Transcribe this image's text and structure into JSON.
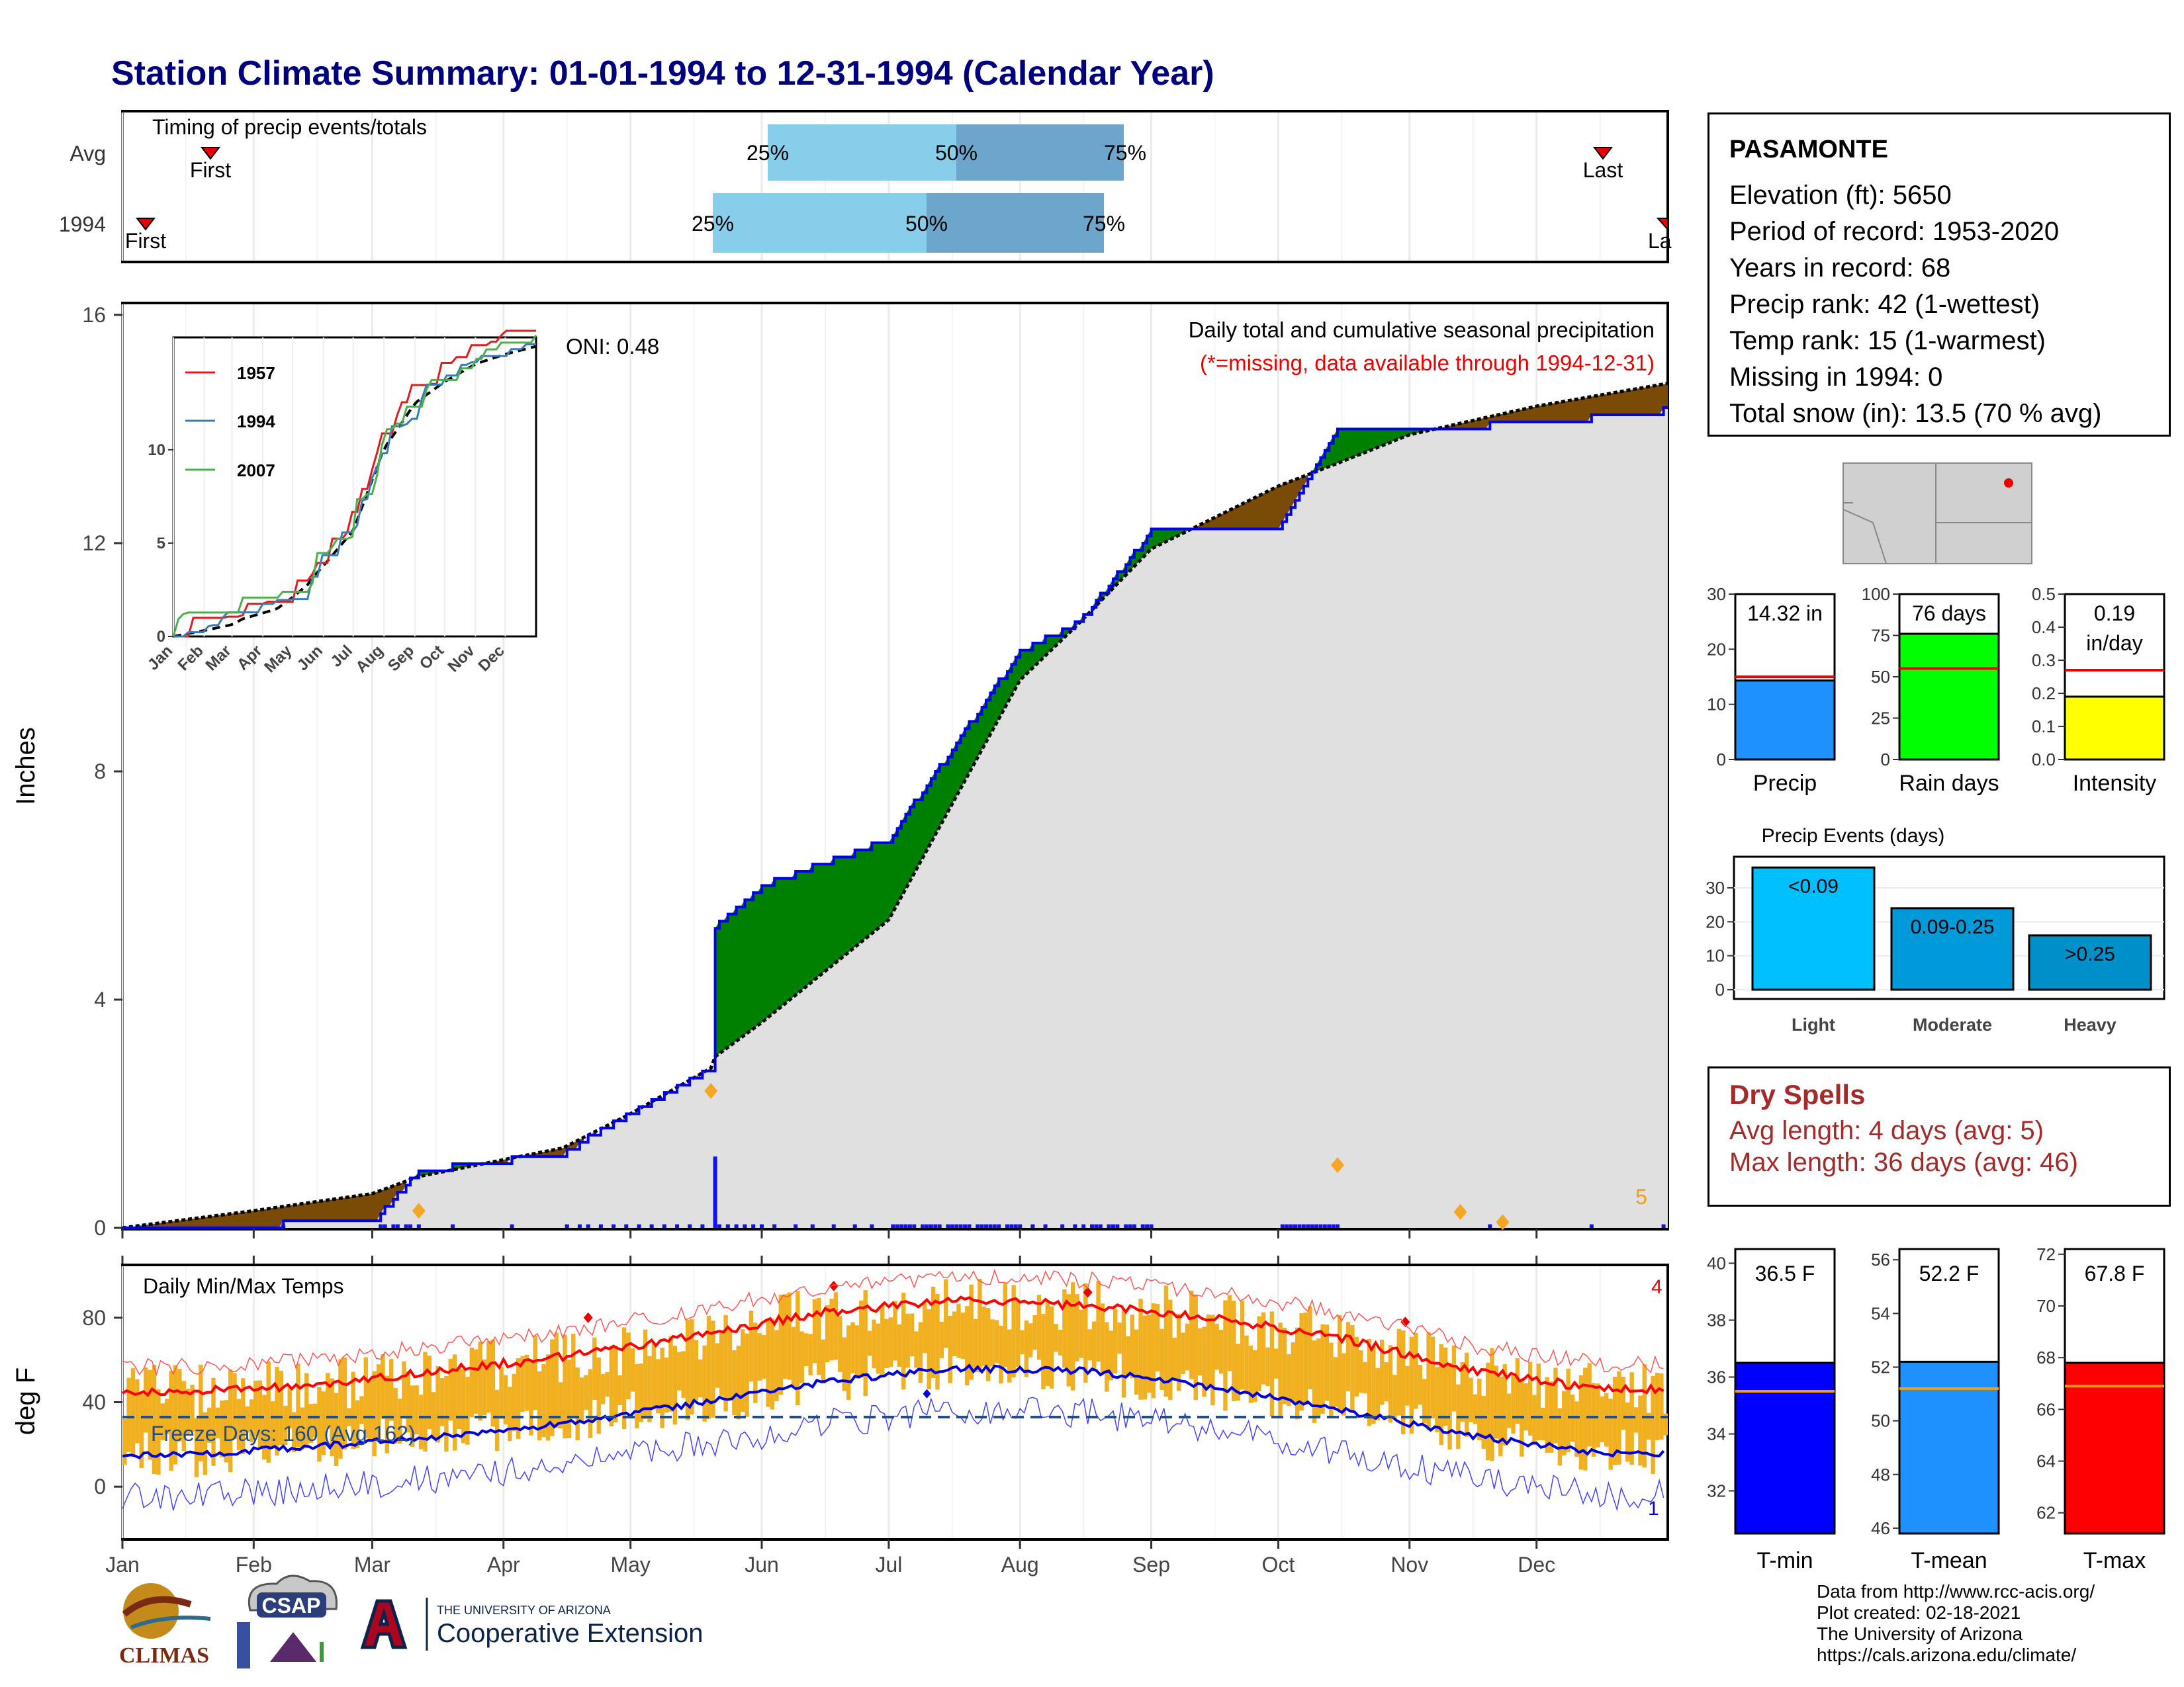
{
  "title": "Station Climate Summary: 01-01-1994 to 12-31-1994 (Calendar Year)",
  "colors": {
    "title": "#00007f",
    "cum_1994": "#0000ee",
    "cum_avg": "#000000",
    "above_fill": "#008000",
    "below_fill": "#7a4b07",
    "area_fill": "#e0e0e0",
    "tmax": "#ff0000",
    "tmin": "#0000dd",
    "temp_bar": "#f0b020",
    "precip_bar": "#1e90ff",
    "raindays_bar": "#00ff00",
    "intensity_bar": "#ffff00",
    "light_bar": "#00bfff",
    "moderate_bar": "#009ad8",
    "heavy_bar": "#0090c8",
    "tmin_bar": "#0000ff",
    "tmean_bar": "#1e90ff",
    "tmax_bar_color": "#ff0000"
  },
  "timing": {
    "label": "Timing of precip events/totals",
    "rows": [
      "Avg",
      "1994"
    ],
    "avg": {
      "first_label": "First",
      "last_label": "Last",
      "q25": "25%",
      "q50": "50%",
      "q75": "75%"
    },
    "yr": {
      "first_label": "First",
      "last_label": "La",
      "q25": "25%",
      "q50": "50%",
      "q75": "75%"
    }
  },
  "main": {
    "ylabel": "Inches",
    "y_ticks": [
      "0",
      "4",
      "8",
      "12",
      "16"
    ],
    "oni": "ONI: 0.48",
    "subtitle": "Daily total and cumulative seasonal precipitation",
    "missing_note": "(*=missing, data available through 1994-12-31)",
    "corner_count": "5"
  },
  "inset": {
    "legend": [
      "1957",
      "1994",
      "2007"
    ],
    "y_ticks": [
      "0",
      "5",
      "10"
    ],
    "x_ticks": [
      "Jan",
      "Feb",
      "Mar",
      "Apr",
      "May",
      "Jun",
      "Jul",
      "Aug",
      "Sep",
      "Oct",
      "Nov",
      "Dec"
    ]
  },
  "temps": {
    "ylabel": "deg F",
    "title": "Daily Min/Max Temps",
    "y_ticks": [
      "0",
      "40",
      "80"
    ],
    "freeze": "Freeze Days: 160 (Avg 162)",
    "corner_top": "4",
    "corner_bottom": "1"
  },
  "months": [
    "Jan",
    "Feb",
    "Mar",
    "Apr",
    "May",
    "Jun",
    "Jul",
    "Aug",
    "Sep",
    "Oct",
    "Nov",
    "Dec"
  ],
  "station": {
    "name": "PASAMONTE",
    "elevation": "Elevation (ft): 5650",
    "period": "Period of record: 1953-2020",
    "years": "Years in record: 68",
    "precip_rank": "Precip rank: 42 (1-wettest)",
    "temp_rank": "Temp rank: 15 (1-warmest)",
    "missing": "Missing in 1994: 0",
    "snow": "Total snow (in): 13.5 (70 % avg)"
  },
  "mini_bars": [
    {
      "label": "Precip",
      "value_text": "14.32 in",
      "value": 14.32,
      "avg": 15.0,
      "ymax": 30,
      "ticks": [
        "0",
        "10",
        "20",
        "30"
      ]
    },
    {
      "label": "Rain days",
      "value_text": "76 days",
      "value": 76,
      "avg": 55,
      "ymax": 100,
      "ticks": [
        "0",
        "25",
        "50",
        "75",
        "100"
      ]
    },
    {
      "label": "Intensity",
      "value_text": "0.19",
      "value_text2": "in/day",
      "value": 0.19,
      "avg": 0.27,
      "ymax": 0.5,
      "ticks": [
        "0.0",
        "0.1",
        "0.2",
        "0.3",
        "0.4",
        "0.5"
      ]
    }
  ],
  "events": {
    "title": "Precip Events (days)",
    "categories": [
      "Light",
      "Moderate",
      "Heavy"
    ],
    "bar_labels": [
      "<0.09",
      "0.09-0.25",
      ">0.25"
    ],
    "values": [
      36,
      24,
      16
    ],
    "ticks": [
      "0",
      "10",
      "20",
      "30"
    ]
  },
  "dry": {
    "title": "Dry Spells",
    "avg": "Avg length: 4 days (avg: 5)",
    "max": "Max length: 36 days (avg: 46)"
  },
  "temp_bars": [
    {
      "label": "T-min",
      "value_text": "36.5 F",
      "value": 36.5,
      "avg": 35.5,
      "ymin": 30.5,
      "ymax": 40.5,
      "ticks": [
        "32",
        "34",
        "36",
        "38",
        "40"
      ]
    },
    {
      "label": "T-mean",
      "value_text": "52.2 F",
      "value": 52.2,
      "avg": 51.2,
      "ymin": 45.8,
      "ymax": 56.4,
      "ticks": [
        "46",
        "48",
        "50",
        "52",
        "54",
        "56"
      ]
    },
    {
      "label": "T-max",
      "value_text": "67.8 F",
      "value": 67.8,
      "avg": 66.9,
      "ymin": 61.2,
      "ymax": 72.2,
      "ticks": [
        "62",
        "64",
        "66",
        "68",
        "70",
        "72"
      ]
    }
  ],
  "footer": {
    "line1": "Data from http://www.rcc-acis.org/",
    "line2": "Plot created: 02-18-2021",
    "line3": "The University of Arizona",
    "line4": "https://cals.arizona.edu/climate/",
    "climas": "CLIMAS",
    "csap": "CSAP",
    "ua_top": "THE UNIVERSITY OF ARIZONA",
    "ua_bottom": "Cooperative Extension"
  },
  "chart_data": [
    {
      "type": "line",
      "title": "Daily total and cumulative seasonal precipitation",
      "ylabel": "Inches",
      "ylim": [
        0,
        16
      ],
      "x": [
        "Jan 1",
        "Feb 1",
        "Mar 1",
        "Mar 12",
        "Apr 15",
        "May 1",
        "May 20",
        "May 21",
        "Jun 1",
        "Jul 1",
        "Aug 1",
        "Aug 15",
        "Sep 1",
        "Oct 1",
        "Oct 15",
        "Nov 1",
        "Dec 1",
        "Dec 31"
      ],
      "series": [
        {
          "name": "1994",
          "values": [
            0.0,
            0.05,
            0.1,
            1.0,
            1.3,
            2.0,
            2.8,
            5.3,
            6.0,
            6.8,
            10.1,
            10.6,
            12.2,
            12.3,
            14.0,
            14.0,
            14.1,
            14.32
          ]
        },
        {
          "name": "Avg",
          "values": [
            0.0,
            0.3,
            0.6,
            0.9,
            1.4,
            2.0,
            2.8,
            3.0,
            3.6,
            5.4,
            9.6,
            10.6,
            11.9,
            13.0,
            13.4,
            13.9,
            14.4,
            14.8
          ]
        }
      ]
    },
    {
      "type": "bar",
      "title": "Daily Min/Max Temps",
      "ylabel": "deg F",
      "ylim": [
        -25,
        105
      ],
      "x": [
        "Jan",
        "Feb",
        "Mar",
        "Apr",
        "May",
        "Jun",
        "Jul",
        "Aug",
        "Sep",
        "Oct",
        "Nov",
        "Dec"
      ],
      "series": [
        {
          "name": "Avg max",
          "values": [
            45,
            48,
            55,
            62,
            72,
            83,
            88,
            86,
            80,
            70,
            55,
            46
          ]
        },
        {
          "name": "Avg min",
          "values": [
            15,
            19,
            24,
            30,
            40,
            50,
            56,
            55,
            47,
            36,
            24,
            16
          ]
        }
      ]
    },
    {
      "type": "bar",
      "title": "Precip Events (days)",
      "categories": [
        "Light",
        "Moderate",
        "Heavy"
      ],
      "values": [
        36,
        24,
        16
      ]
    }
  ]
}
